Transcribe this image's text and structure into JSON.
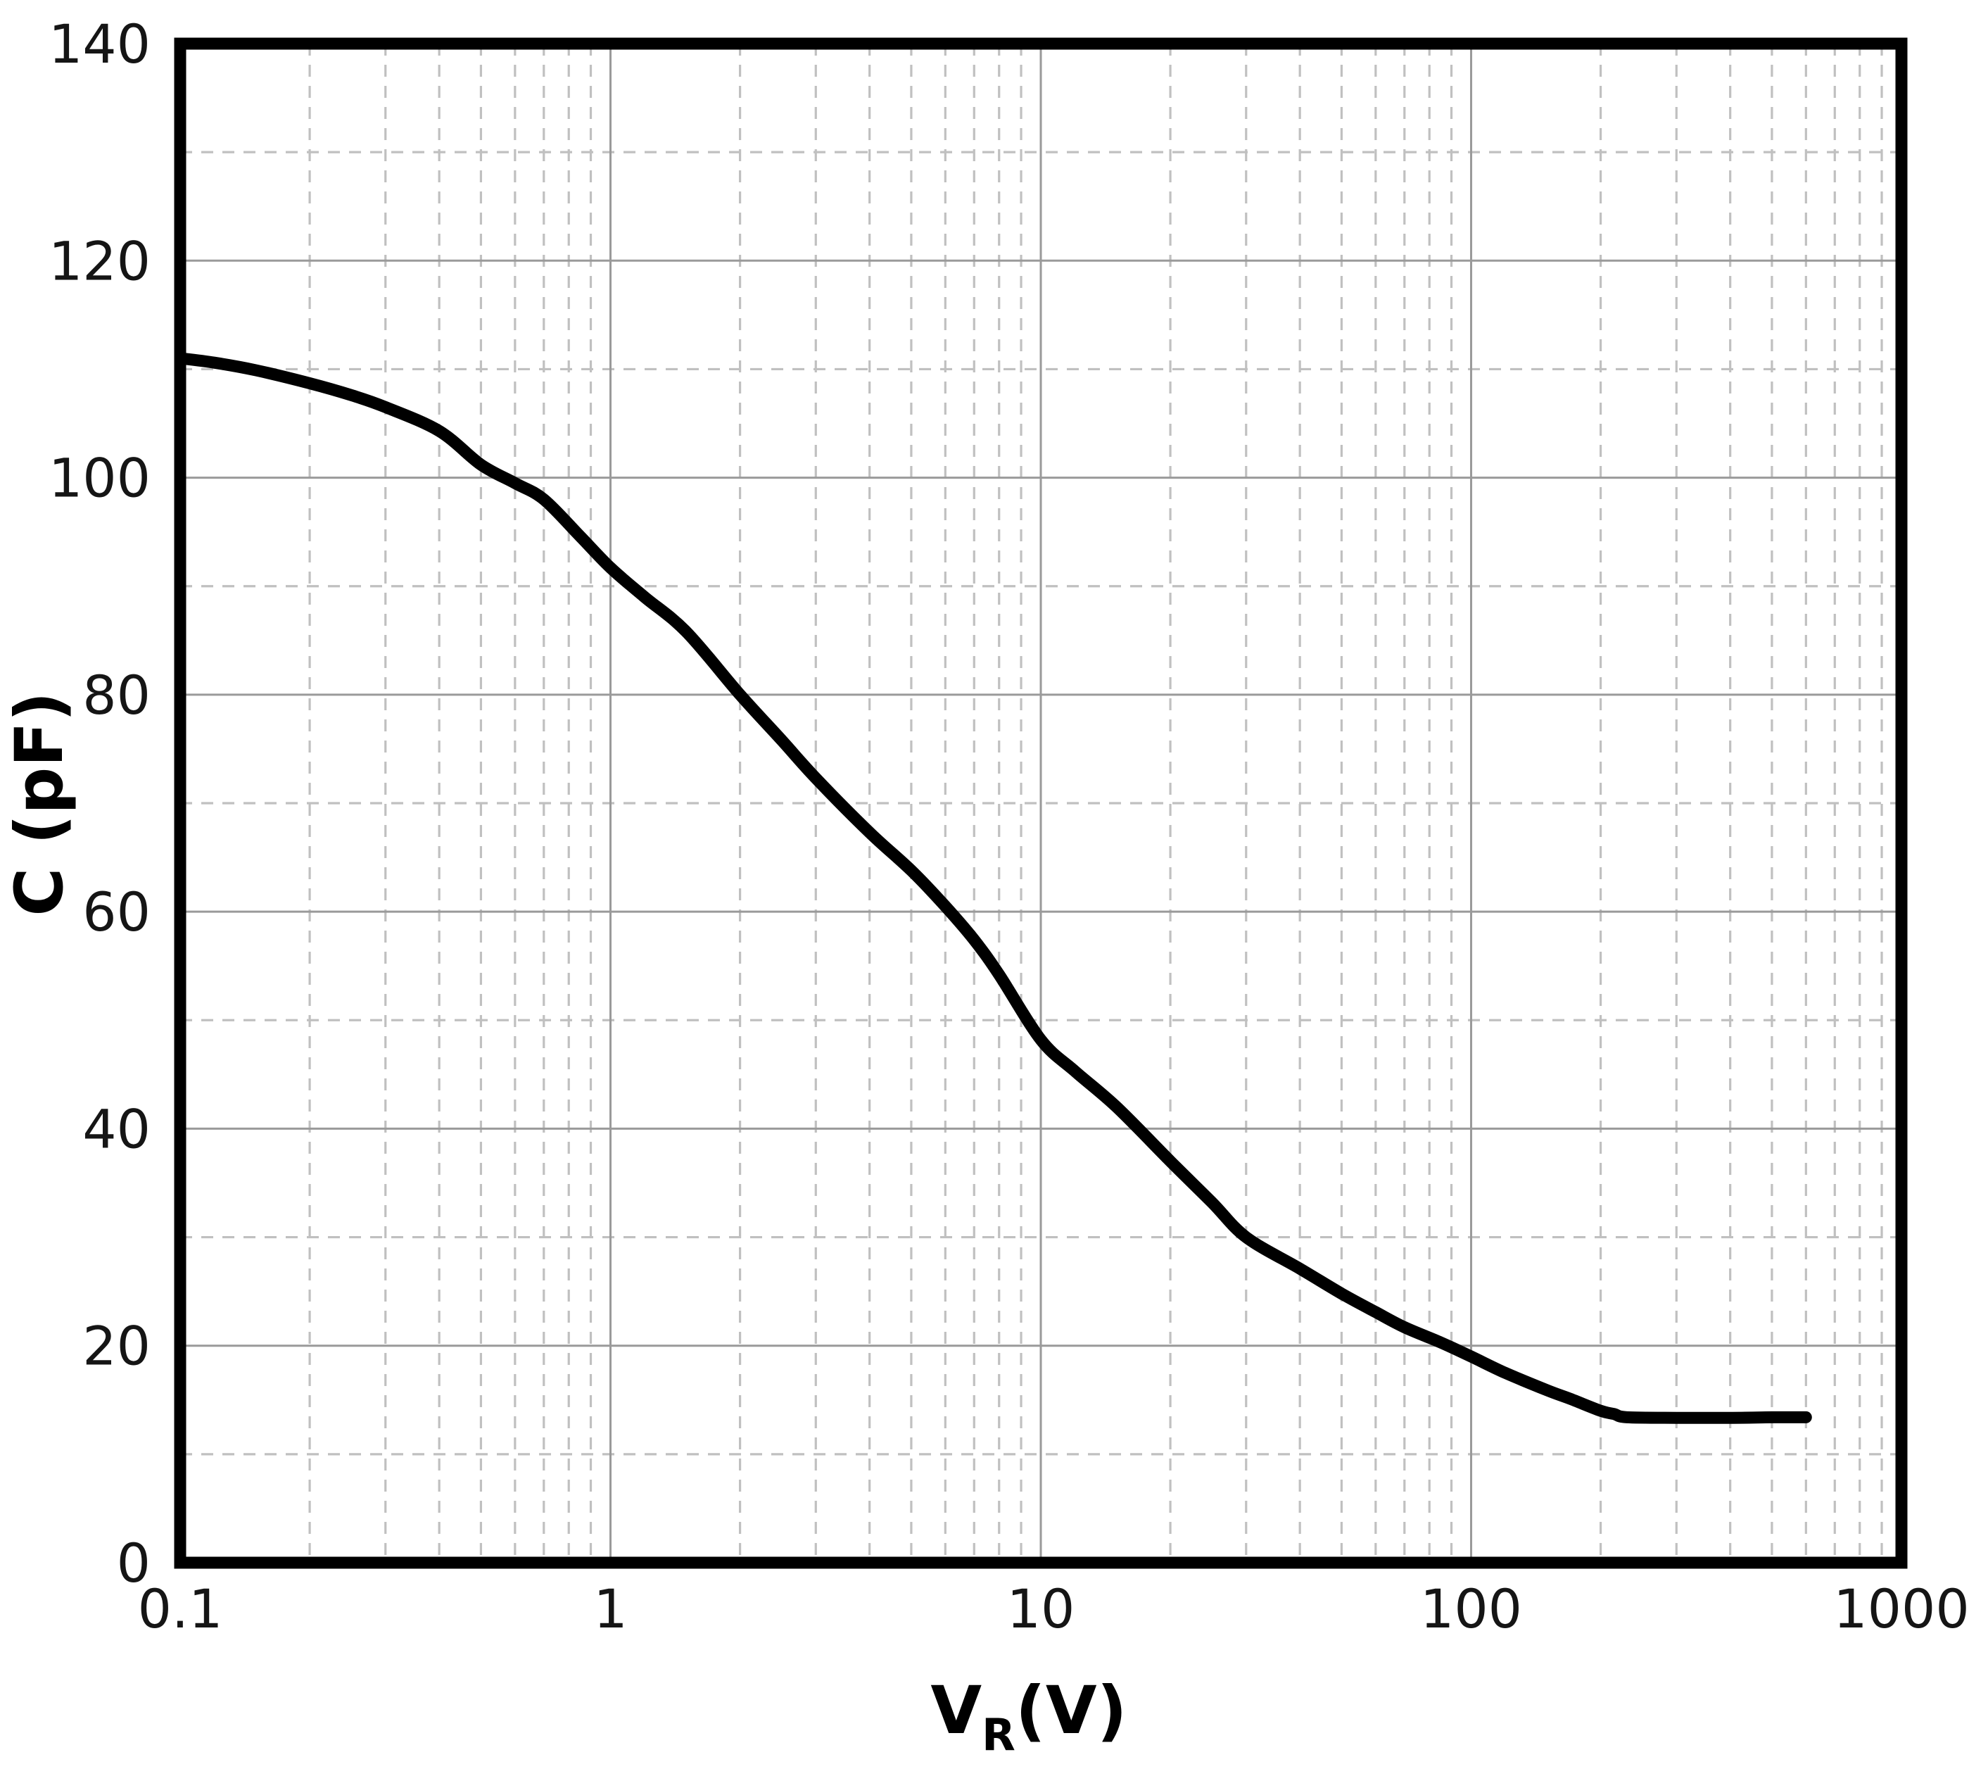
{
  "chart_data": {
    "type": "line",
    "title": "",
    "xlabel": {
      "main": "V",
      "sub": "R",
      "unit": "(V)"
    },
    "ylabel": "C (pF)",
    "x_scale": "log",
    "y_scale": "linear",
    "x_range": [
      0.1,
      1000
    ],
    "y_range": [
      0,
      140
    ],
    "x_major_ticks": [
      0.1,
      1,
      10,
      100,
      1000
    ],
    "x_tick_labels": [
      "0.1",
      "1",
      "10",
      "100",
      "1000"
    ],
    "y_major_ticks": [
      0,
      20,
      40,
      60,
      80,
      100,
      120,
      140
    ],
    "y_tick_labels": [
      "0",
      "20",
      "40",
      "60",
      "80",
      "100",
      "120",
      "140"
    ],
    "y_minor_step": 10,
    "grid": {
      "major": "solid",
      "minor": "dashed",
      "minor_x": "log-decades 2-9"
    },
    "legend": "none",
    "series": [
      {
        "label": "C (pF)",
        "points": [
          [
            0.1,
            111.0
          ],
          [
            0.12,
            110.6
          ],
          [
            0.15,
            109.9
          ],
          [
            0.2,
            108.7
          ],
          [
            0.25,
            107.6
          ],
          [
            0.3,
            106.5
          ],
          [
            0.4,
            104.3
          ],
          [
            0.5,
            101.2
          ],
          [
            0.6,
            99.5
          ],
          [
            0.7,
            98.0
          ],
          [
            0.85,
            94.6
          ],
          [
            1.0,
            91.7
          ],
          [
            1.2,
            89.0
          ],
          [
            1.5,
            85.8
          ],
          [
            2.0,
            80.0
          ],
          [
            2.5,
            75.8
          ],
          [
            3.0,
            72.3
          ],
          [
            4.0,
            67.3
          ],
          [
            5.0,
            63.8
          ],
          [
            6.0,
            60.5
          ],
          [
            7.0,
            57.4
          ],
          [
            8.0,
            54.2
          ],
          [
            10.0,
            48.2
          ],
          [
            12.0,
            45.3
          ],
          [
            15.0,
            42.0
          ],
          [
            20.0,
            37.0
          ],
          [
            25.0,
            33.2
          ],
          [
            30.0,
            30.0
          ],
          [
            40.0,
            27.1
          ],
          [
            50.0,
            24.8
          ],
          [
            60.0,
            23.1
          ],
          [
            70.0,
            21.7
          ],
          [
            85.0,
            20.3
          ],
          [
            100.0,
            19.0
          ],
          [
            120.0,
            17.5
          ],
          [
            150.0,
            15.9
          ],
          [
            170.0,
            15.1
          ],
          [
            200.0,
            14.0
          ],
          [
            215.0,
            13.7
          ],
          [
            230.0,
            13.4
          ],
          [
            300.0,
            13.35
          ],
          [
            400.0,
            13.35
          ],
          [
            500.0,
            13.4
          ],
          [
            600.0,
            13.4
          ]
        ]
      }
    ],
    "colors": {
      "curve": "#000000",
      "border": "#000000",
      "major_grid": "#9a9a9a",
      "minor_grid": "#c0c0c0",
      "text": "#151515",
      "background": "#ffffff"
    }
  }
}
